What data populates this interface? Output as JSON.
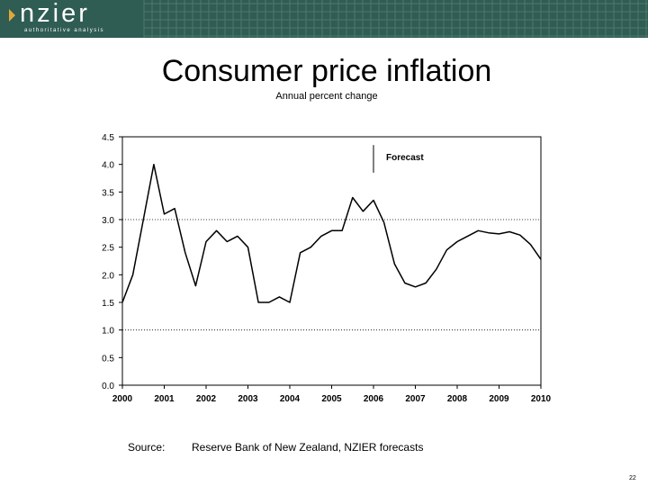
{
  "header": {
    "logo": "nzier",
    "tagline": "authoritative analysis",
    "colors": {
      "banner": "#2f5c53",
      "accent": "#e0a83a"
    },
    "icon": "chevron-right-icon"
  },
  "slide": {
    "title": "Consumer price inflation",
    "subtitle": "Annual percent change",
    "source_label": "Source:",
    "source_text": "Reserve Bank of New Zealand, NZIER forecasts",
    "page_number": "22"
  },
  "chart_data": {
    "type": "line",
    "title": "",
    "xlabel": "",
    "ylabel": "",
    "x_ticks": [
      "2000",
      "2001",
      "2002",
      "2003",
      "2004",
      "2005",
      "2006",
      "2007",
      "2008",
      "2009",
      "2010"
    ],
    "y_ticks": [
      "0.0",
      "0.5",
      "1.0",
      "1.5",
      "2.0",
      "2.5",
      "3.0",
      "3.5",
      "4.0",
      "4.5"
    ],
    "xlim": [
      2000,
      2010
    ],
    "ylim": [
      0,
      4.5
    ],
    "reference_lines": [
      1.0,
      3.0
    ],
    "grid": false,
    "forecast_marker": {
      "x": 2006.0,
      "label": "Forecast"
    },
    "series": [
      {
        "color": "#000000",
        "x": [
          2000.0,
          2000.25,
          2000.5,
          2000.75,
          2001.0,
          2001.25,
          2001.5,
          2001.75,
          2002.0,
          2002.25,
          2002.5,
          2002.75,
          2003.0,
          2003.25,
          2003.5,
          2003.75,
          2004.0,
          2004.25,
          2004.5,
          2004.75,
          2005.0,
          2005.25,
          2005.5,
          2005.75,
          2006.0,
          2006.25,
          2006.5,
          2006.75,
          2007.0,
          2007.25,
          2007.5,
          2007.75,
          2008.0,
          2008.25,
          2008.5,
          2008.75,
          2009.0,
          2009.25,
          2009.5,
          2009.75,
          2010.0
        ],
        "values": [
          1.5,
          2.0,
          3.0,
          4.0,
          3.1,
          3.2,
          2.4,
          1.8,
          2.6,
          2.8,
          2.6,
          2.7,
          2.5,
          1.5,
          1.5,
          1.6,
          1.5,
          2.4,
          2.5,
          2.7,
          2.8,
          2.8,
          3.4,
          3.15,
          3.35,
          2.95,
          2.2,
          1.85,
          1.78,
          1.85,
          2.1,
          2.45,
          2.6,
          2.7,
          2.8,
          2.76,
          2.74,
          2.78,
          2.72,
          2.55,
          2.28
        ]
      }
    ]
  }
}
